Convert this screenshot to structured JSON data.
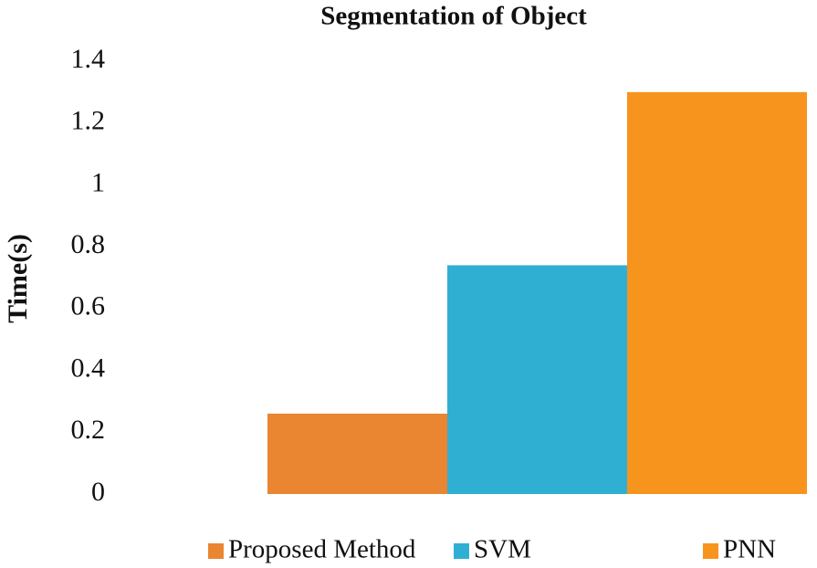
{
  "chart_data": {
    "type": "bar",
    "title": "Segmentation of Object",
    "y_label": "Time(s)",
    "categories": [
      null
    ],
    "series": [
      {
        "name": "Proposed Method",
        "color": "#ea8531",
        "values": [
          0.26
        ]
      },
      {
        "name": "SVM",
        "color": "#2fb0d3",
        "values": [
          0.74
        ]
      },
      {
        "name": "PNN",
        "color": "#f7941d",
        "values": [
          1.3
        ]
      }
    ],
    "ylim": [
      0,
      1.4
    ],
    "yticks": [
      0,
      0.2,
      0.4,
      0.6,
      0.8,
      1,
      1.2,
      1.4
    ],
    "grid": false,
    "legend": "bottom"
  }
}
